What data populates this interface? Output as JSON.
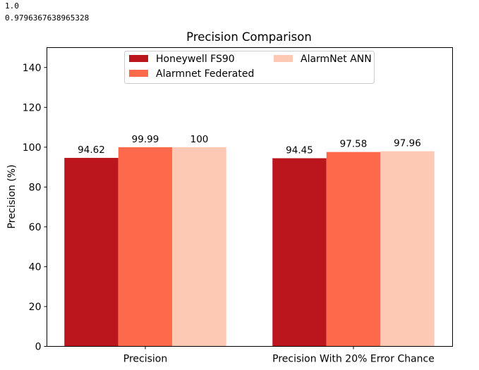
{
  "console_output": [
    "1.0",
    "0.9796367638965328"
  ],
  "chart_data": {
    "type": "bar",
    "title": "Precision Comparison",
    "xlabel": "",
    "ylabel": "Precision (%)",
    "ylim": [
      0,
      150
    ],
    "yticks": [
      0,
      20,
      40,
      60,
      80,
      100,
      120,
      140
    ],
    "categories": [
      "Precision",
      "Precision With 20% Error Chance"
    ],
    "series": [
      {
        "name": "Honeywell FS90",
        "values": [
          94.62,
          94.45
        ],
        "labels": [
          "94.62",
          "94.45"
        ],
        "color": "#bb151e"
      },
      {
        "name": "Alarmnet Federated",
        "values": [
          99.99,
          97.58
        ],
        "labels": [
          "99.99",
          "97.58"
        ],
        "color": "#fd6a4b"
      },
      {
        "name": "AlarmNet ANN",
        "values": [
          100,
          97.96
        ],
        "labels": [
          "100",
          "97.96"
        ],
        "color": "#fdc9b4"
      }
    ],
    "legend_placement": "upper center",
    "grid": false
  }
}
